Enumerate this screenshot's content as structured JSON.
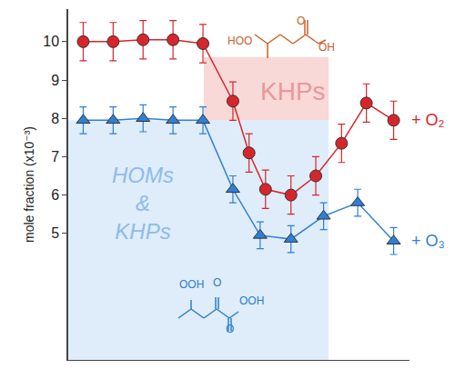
{
  "chart_data": {
    "type": "scatter",
    "y_label": "mole fraction (x10⁻³)",
    "xlim": [
      0.5,
      11.9
    ],
    "xticks": [],
    "ylim": [
      1.7,
      10.85
    ],
    "yticks": [
      5,
      6,
      7,
      8,
      9,
      10
    ],
    "grid": false,
    "tick_labels": "y",
    "series": [
      {
        "name": "+ O₂",
        "color": "#d7262b",
        "marker": "circle",
        "line_style": "solid",
        "x": [
          1,
          2,
          3,
          4,
          5,
          6,
          6.54,
          7.09,
          7.94,
          8.77,
          9.63,
          10.46,
          11.37
        ],
        "values": [
          10.0,
          10.0,
          10.05,
          10.05,
          9.95,
          8.45,
          7.1,
          6.15,
          6.0,
          6.5,
          7.35,
          8.4,
          7.95
        ],
        "error": [
          0.5,
          0.5,
          0.5,
          0.5,
          0.5,
          0.5,
          0.5,
          0.5,
          0.5,
          0.5,
          0.5,
          0.5,
          0.5
        ]
      },
      {
        "name": "+ O₃",
        "color": "#2f7fd8",
        "marker": "triangle-up",
        "line_style": "solid",
        "x": [
          1,
          2,
          3,
          4,
          5,
          6,
          6.91,
          7.94,
          9.03,
          10.17,
          11.37
        ],
        "values": [
          7.95,
          7.95,
          8.0,
          7.95,
          7.95,
          6.15,
          4.95,
          4.85,
          5.45,
          5.8,
          4.8
        ],
        "error": [
          0.35,
          0.35,
          0.35,
          0.35,
          0.35,
          0.35,
          0.35,
          0.35,
          0.35,
          0.35,
          0.35
        ]
      }
    ],
    "regions": [
      {
        "label": "KHPs",
        "color": "#f2a9a9",
        "x": [
          5.03,
          9.2
        ],
        "y": [
          7.95,
          9.6
        ]
      },
      {
        "label": [
          "HOMs",
          "&",
          "KHPs"
        ],
        "color": "#b9d5f3",
        "x": [
          0.5,
          9.2
        ],
        "y": [
          1.7,
          7.95
        ]
      }
    ],
    "molecules": [
      {
        "color": "#c8602a",
        "labels": [
          "HOO",
          "O",
          "OH"
        ]
      },
      {
        "color": "#2a7fc4",
        "labels": [
          "OOH",
          "O",
          "O",
          "OOH"
        ]
      }
    ]
  }
}
